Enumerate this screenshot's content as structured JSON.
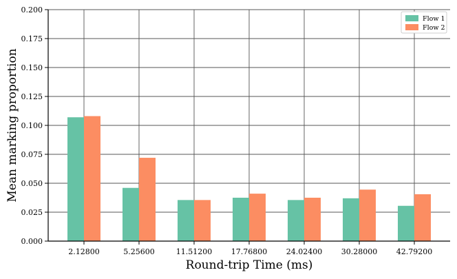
{
  "chart_data": {
    "type": "bar",
    "categories": [
      "2.12800",
      "5.25600",
      "11.51200",
      "17.76800",
      "24.02400",
      "30.28000",
      "42.79200"
    ],
    "series": [
      {
        "name": "Flow 1",
        "color": "#66c2a5",
        "values": [
          0.107,
          0.046,
          0.0355,
          0.0375,
          0.0355,
          0.037,
          0.0305
        ]
      },
      {
        "name": "Flow 2",
        "color": "#fc8d62",
        "values": [
          0.108,
          0.072,
          0.0355,
          0.041,
          0.0375,
          0.0445,
          0.0405
        ]
      }
    ],
    "xlabel": "Round-trip Time (ms)",
    "ylabel": "Mean marking proportion",
    "ylim": [
      0,
      0.2
    ],
    "yticks": [
      "0.000",
      "0.025",
      "0.050",
      "0.075",
      "0.100",
      "0.125",
      "0.150",
      "0.175",
      "0.200"
    ],
    "grid": true,
    "legend_position": "top-right"
  }
}
